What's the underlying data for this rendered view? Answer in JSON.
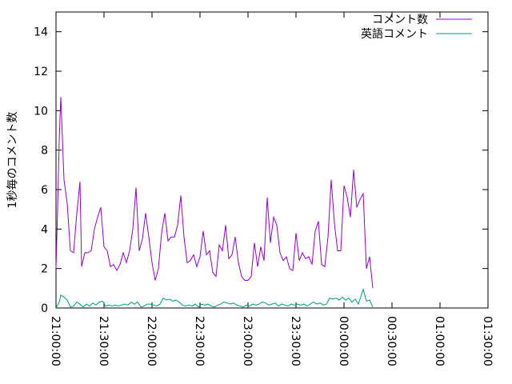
{
  "chart_data": {
    "type": "line",
    "title": "",
    "xlabel": "",
    "ylabel": "1秒毎のコメント数",
    "ylim": [
      0,
      15
    ],
    "yticks": [
      0,
      2,
      4,
      6,
      8,
      10,
      12,
      14
    ],
    "xlim": [
      "21:00:00",
      "01:30:00"
    ],
    "xticks": [
      "21:00:00",
      "21:30:00",
      "22:00:00",
      "22:30:00",
      "23:00:00",
      "23:30:00",
      "00:00:00",
      "00:30:00",
      "01:00:00",
      "01:30:00"
    ],
    "xtick_rotation": "vertical",
    "grid": false,
    "legend_position": "top-right",
    "series": [
      {
        "name": "コメント数",
        "color": "#9400d3",
        "points": [
          [
            "21:00:00",
            2.0
          ],
          [
            "21:01:00",
            5.0
          ],
          [
            "21:02:00",
            8.5
          ],
          [
            "21:03:00",
            10.7
          ],
          [
            "21:05:00",
            6.5
          ],
          [
            "21:07:00",
            5.3
          ],
          [
            "21:09:00",
            2.9
          ],
          [
            "21:11:00",
            2.8
          ],
          [
            "21:13:00",
            4.8
          ],
          [
            "21:15:00",
            6.4
          ],
          [
            "21:16:00",
            2.1
          ],
          [
            "21:18:00",
            2.8
          ],
          [
            "21:20:00",
            2.8
          ],
          [
            "21:22:00",
            2.9
          ],
          [
            "21:24:00",
            4.0
          ],
          [
            "21:26:00",
            4.6
          ],
          [
            "21:28:00",
            5.1
          ],
          [
            "21:30:00",
            3.1
          ],
          [
            "21:32:00",
            2.9
          ],
          [
            "21:34:00",
            2.1
          ],
          [
            "21:36:00",
            2.2
          ],
          [
            "21:38:00",
            1.9
          ],
          [
            "21:40:00",
            2.2
          ],
          [
            "21:42:00",
            2.8
          ],
          [
            "21:44:00",
            2.3
          ],
          [
            "21:46:00",
            2.9
          ],
          [
            "21:48:00",
            4.0
          ],
          [
            "21:50:00",
            6.1
          ],
          [
            "21:52:00",
            2.9
          ],
          [
            "21:54:00",
            3.5
          ],
          [
            "21:56:00",
            4.8
          ],
          [
            "21:58:00",
            3.6
          ],
          [
            "22:00:00",
            2.3
          ],
          [
            "22:02:00",
            1.4
          ],
          [
            "22:04:00",
            2.0
          ],
          [
            "22:06:00",
            3.8
          ],
          [
            "22:08:00",
            4.8
          ],
          [
            "22:10:00",
            3.4
          ],
          [
            "22:12:00",
            3.6
          ],
          [
            "22:14:00",
            3.6
          ],
          [
            "22:16:00",
            4.2
          ],
          [
            "22:18:00",
            5.7
          ],
          [
            "22:20:00",
            3.6
          ],
          [
            "22:22:00",
            2.3
          ],
          [
            "22:24:00",
            2.4
          ],
          [
            "22:26:00",
            2.7
          ],
          [
            "22:28:00",
            2.1
          ],
          [
            "22:30:00",
            2.6
          ],
          [
            "22:32:00",
            3.9
          ],
          [
            "22:34:00",
            2.7
          ],
          [
            "22:36:00",
            2.9
          ],
          [
            "22:38:00",
            1.8
          ],
          [
            "22:40:00",
            1.6
          ],
          [
            "22:42:00",
            3.2
          ],
          [
            "22:44:00",
            2.9
          ],
          [
            "22:46:00",
            4.2
          ],
          [
            "22:48:00",
            2.5
          ],
          [
            "22:50:00",
            2.7
          ],
          [
            "22:52:00",
            3.6
          ],
          [
            "22:54:00",
            2.3
          ],
          [
            "22:56:00",
            1.6
          ],
          [
            "22:58:00",
            1.4
          ],
          [
            "23:00:00",
            1.4
          ],
          [
            "23:02:00",
            1.6
          ],
          [
            "23:04:00",
            3.3
          ],
          [
            "23:06:00",
            2.1
          ],
          [
            "23:08:00",
            3.1
          ],
          [
            "23:10:00",
            2.4
          ],
          [
            "23:12:00",
            5.6
          ],
          [
            "23:14:00",
            3.3
          ],
          [
            "23:16:00",
            4.6
          ],
          [
            "23:18:00",
            4.2
          ],
          [
            "23:20:00",
            2.8
          ],
          [
            "23:22:00",
            2.4
          ],
          [
            "23:24:00",
            2.6
          ],
          [
            "23:26:00",
            2.0
          ],
          [
            "23:28:00",
            1.9
          ],
          [
            "23:30:00",
            3.8
          ],
          [
            "23:32:00",
            2.4
          ],
          [
            "23:34:00",
            2.8
          ],
          [
            "23:36:00",
            2.5
          ],
          [
            "23:38:00",
            2.6
          ],
          [
            "23:40:00",
            2.2
          ],
          [
            "23:42:00",
            3.9
          ],
          [
            "23:44:00",
            4.4
          ],
          [
            "23:46:00",
            2.2
          ],
          [
            "23:48:00",
            2.1
          ],
          [
            "23:50:00",
            3.6
          ],
          [
            "23:52:00",
            6.5
          ],
          [
            "23:54:00",
            4.3
          ],
          [
            "23:56:00",
            2.9
          ],
          [
            "23:58:00",
            2.9
          ],
          [
            "00:00:00",
            6.2
          ],
          [
            "00:02:00",
            5.6
          ],
          [
            "00:04:00",
            4.6
          ],
          [
            "00:06:00",
            7.0
          ],
          [
            "00:08:00",
            5.1
          ],
          [
            "00:10:00",
            5.5
          ],
          [
            "00:12:00",
            5.8
          ],
          [
            "00:14:00",
            2.0
          ],
          [
            "00:16:00",
            2.6
          ],
          [
            "00:18:00",
            1.0
          ]
        ]
      },
      {
        "name": "英語コメント",
        "color": "#009e73",
        "points": [
          [
            "21:00:00",
            0.0
          ],
          [
            "21:02:00",
            0.3
          ],
          [
            "21:03:00",
            0.65
          ],
          [
            "21:05:00",
            0.55
          ],
          [
            "21:07:00",
            0.4
          ],
          [
            "21:09:00",
            0.05
          ],
          [
            "21:11:00",
            0.1
          ],
          [
            "21:13:00",
            0.3
          ],
          [
            "21:15:00",
            0.2
          ],
          [
            "21:17:00",
            0.05
          ],
          [
            "21:19:00",
            0.2
          ],
          [
            "21:21:00",
            0.1
          ],
          [
            "21:23:00",
            0.25
          ],
          [
            "21:25:00",
            0.15
          ],
          [
            "21:27:00",
            0.3
          ],
          [
            "21:29:00",
            0.35
          ],
          [
            "21:31:00",
            0.1
          ],
          [
            "21:33:00",
            0.15
          ],
          [
            "21:35:00",
            0.1
          ],
          [
            "21:37:00",
            0.15
          ],
          [
            "21:39:00",
            0.1
          ],
          [
            "21:41:00",
            0.15
          ],
          [
            "21:43:00",
            0.2
          ],
          [
            "21:45:00",
            0.15
          ],
          [
            "21:47:00",
            0.3
          ],
          [
            "21:49:00",
            0.2
          ],
          [
            "21:51:00",
            0.3
          ],
          [
            "21:53:00",
            0.05
          ],
          [
            "21:55:00",
            0.1
          ],
          [
            "21:57:00",
            0.2
          ],
          [
            "21:59:00",
            0.2
          ],
          [
            "22:01:00",
            0.15
          ],
          [
            "22:03:00",
            0.1
          ],
          [
            "22:05:00",
            0.2
          ],
          [
            "22:07:00",
            0.5
          ],
          [
            "22:09:00",
            0.4
          ],
          [
            "22:11:00",
            0.45
          ],
          [
            "22:13:00",
            0.35
          ],
          [
            "22:15:00",
            0.4
          ],
          [
            "22:17:00",
            0.3
          ],
          [
            "22:19:00",
            0.15
          ],
          [
            "22:21:00",
            0.1
          ],
          [
            "22:23:00",
            0.15
          ],
          [
            "22:25:00",
            0.1
          ],
          [
            "22:27:00",
            0.2
          ],
          [
            "22:29:00",
            0.05
          ],
          [
            "22:31:00",
            0.2
          ],
          [
            "22:33:00",
            0.15
          ],
          [
            "22:35:00",
            0.2
          ],
          [
            "22:37:00",
            0.1
          ],
          [
            "22:39:00",
            0.05
          ],
          [
            "22:41:00",
            0.15
          ],
          [
            "22:43:00",
            0.2
          ],
          [
            "22:45:00",
            0.3
          ],
          [
            "22:47:00",
            0.25
          ],
          [
            "22:49:00",
            0.2
          ],
          [
            "22:51:00",
            0.25
          ],
          [
            "22:53:00",
            0.15
          ],
          [
            "22:55:00",
            0.1
          ],
          [
            "22:57:00",
            0.05
          ],
          [
            "22:59:00",
            0.15
          ],
          [
            "23:01:00",
            0.1
          ],
          [
            "23:03:00",
            0.2
          ],
          [
            "23:05:00",
            0.15
          ],
          [
            "23:07:00",
            0.2
          ],
          [
            "23:09:00",
            0.3
          ],
          [
            "23:11:00",
            0.25
          ],
          [
            "23:13:00",
            0.15
          ],
          [
            "23:15:00",
            0.2
          ],
          [
            "23:17:00",
            0.25
          ],
          [
            "23:19:00",
            0.1
          ],
          [
            "23:21:00",
            0.2
          ],
          [
            "23:23:00",
            0.15
          ],
          [
            "23:25:00",
            0.1
          ],
          [
            "23:27:00",
            0.2
          ],
          [
            "23:29:00",
            0.15
          ],
          [
            "23:31:00",
            0.2
          ],
          [
            "23:33:00",
            0.15
          ],
          [
            "23:35:00",
            0.2
          ],
          [
            "23:37:00",
            0.1
          ],
          [
            "23:39:00",
            0.2
          ],
          [
            "23:41:00",
            0.3
          ],
          [
            "23:43:00",
            0.2
          ],
          [
            "23:45:00",
            0.25
          ],
          [
            "23:47:00",
            0.15
          ],
          [
            "23:49:00",
            0.2
          ],
          [
            "23:51:00",
            0.5
          ],
          [
            "23:53:00",
            0.45
          ],
          [
            "23:55:00",
            0.5
          ],
          [
            "23:57:00",
            0.4
          ],
          [
            "23:59:00",
            0.55
          ],
          [
            "00:01:00",
            0.4
          ],
          [
            "00:03:00",
            0.5
          ],
          [
            "00:05:00",
            0.3
          ],
          [
            "00:07:00",
            0.45
          ],
          [
            "00:09:00",
            0.2
          ],
          [
            "00:11:00",
            0.7
          ],
          [
            "00:12:00",
            0.95
          ],
          [
            "00:14:00",
            0.35
          ],
          [
            "00:16:00",
            0.4
          ],
          [
            "00:18:00",
            0.05
          ]
        ]
      }
    ]
  }
}
